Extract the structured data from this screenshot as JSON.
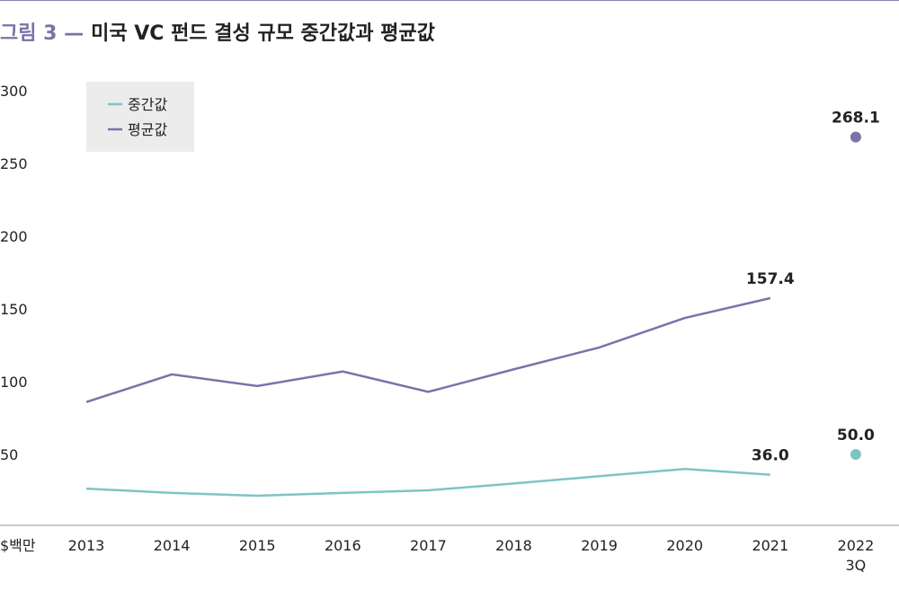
{
  "chart_data": {
    "type": "line",
    "figure_label": "그림 3 —",
    "title": "미국 VC 펀드 결성 규모 중간값과 평균값",
    "y_unit": "$백만",
    "categories": [
      "2013",
      "2014",
      "2015",
      "2016",
      "2017",
      "2018",
      "2019",
      "2020",
      "2021",
      "2022\n3Q"
    ],
    "series": [
      {
        "name": "중간값",
        "color": "#7fc4c4",
        "values": [
          26.5,
          23.5,
          21.6,
          23.5,
          25.3,
          30,
          35,
          40,
          36.0,
          50.0
        ],
        "value_labels": [
          null,
          null,
          null,
          null,
          null,
          null,
          null,
          null,
          "36.0",
          "50.0"
        ]
      },
      {
        "name": "평균값",
        "color": "#7b72a8",
        "values": [
          86,
          105,
          97,
          107,
          93,
          108.5,
          123.5,
          143.8,
          157.4,
          268.1
        ],
        "value_labels": [
          null,
          null,
          null,
          null,
          null,
          null,
          null,
          null,
          "157.4",
          "268.1"
        ]
      }
    ],
    "ylim": [
      0,
      300
    ],
    "yticks": [
      50,
      100,
      150,
      200,
      250,
      300
    ],
    "grid": false,
    "legend": "upper left"
  }
}
